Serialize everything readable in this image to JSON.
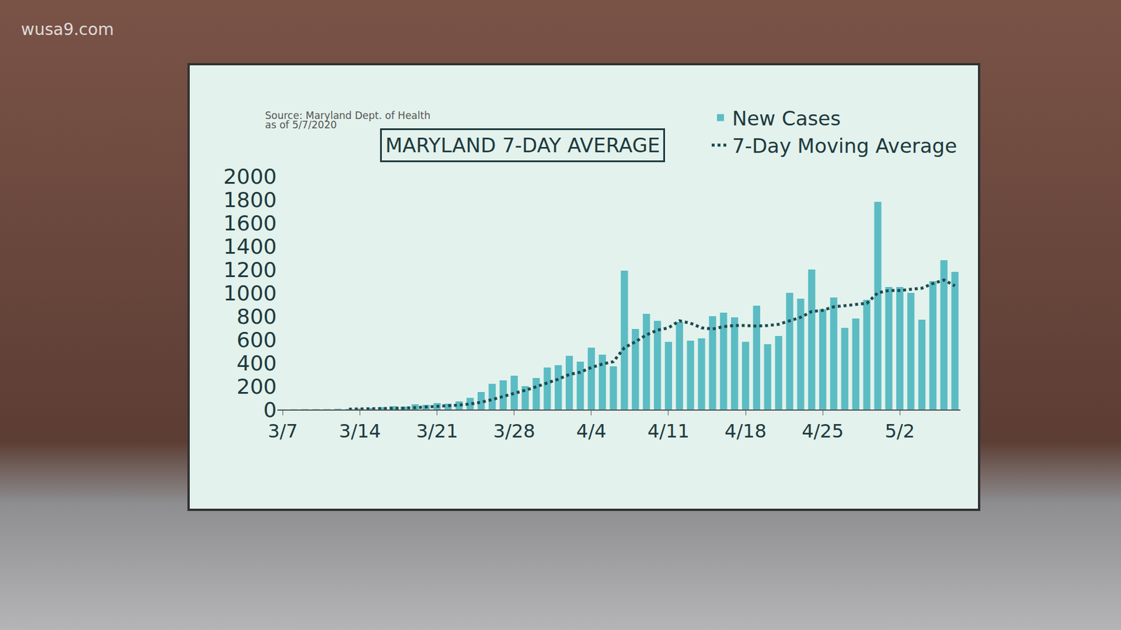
{
  "chart_data": {
    "type": "bar",
    "title": "MARYLAND 7-DAY AVERAGE",
    "annotations": [
      "Source: Maryland Dept. of Health",
      "as of 5/7/2020",
      "wusa9.com"
    ],
    "categories": [
      "3/7",
      null,
      null,
      null,
      null,
      null,
      null,
      "3/14",
      null,
      null,
      null,
      null,
      null,
      null,
      "3/21",
      null,
      null,
      null,
      null,
      null,
      null,
      "3/28",
      null,
      null,
      null,
      null,
      null,
      null,
      "4/4",
      null,
      null,
      null,
      null,
      null,
      null,
      "4/11",
      null,
      null,
      null,
      null,
      null,
      null,
      "4/18",
      null,
      null,
      null,
      null,
      null,
      null,
      "4/25",
      null,
      null,
      null,
      null,
      null,
      null,
      "5/2",
      null,
      null,
      null,
      null,
      null
    ],
    "series": [
      {
        "name": "New Cases",
        "type": "bar",
        "color": "#5bbcc4",
        "values": [
          1,
          2,
          3,
          3,
          3,
          6,
          5,
          8,
          12,
          20,
          28,
          25,
          45,
          40,
          55,
          50,
          70,
          100,
          150,
          220,
          250,
          290,
          200,
          270,
          360,
          380,
          460,
          410,
          530,
          470,
          370,
          1190,
          690,
          820,
          760,
          580,
          750,
          590,
          610,
          800,
          830,
          790,
          580,
          890,
          560,
          630,
          1000,
          950,
          1200,
          860,
          960,
          700,
          780,
          940,
          1780,
          1050,
          1050,
          1000,
          770,
          1100,
          1280,
          1180
        ]
      },
      {
        "name": "7-Day Moving Average",
        "type": "line",
        "color": "#1d4a4f",
        "line_style": "dotted",
        "values": [
          null,
          null,
          null,
          null,
          null,
          null,
          3,
          4,
          5,
          6,
          9,
          12,
          16,
          20,
          26,
          31,
          38,
          47,
          62,
          85,
          110,
          140,
          165,
          195,
          225,
          260,
          300,
          320,
          360,
          390,
          410,
          530,
          580,
          640,
          680,
          700,
          760,
          740,
          700,
          690,
          710,
          720,
          720,
          715,
          720,
          730,
          760,
          790,
          840,
          850,
          880,
          890,
          900,
          910,
          1000,
          1020,
          1020,
          1030,
          1040,
          1080,
          1110,
          1060
        ]
      }
    ],
    "ylim": [
      0,
      2000
    ],
    "yticks": [
      0,
      200,
      400,
      600,
      800,
      1000,
      1200,
      1400,
      1600,
      1800,
      2000
    ],
    "grid": false,
    "legend": "top right"
  }
}
